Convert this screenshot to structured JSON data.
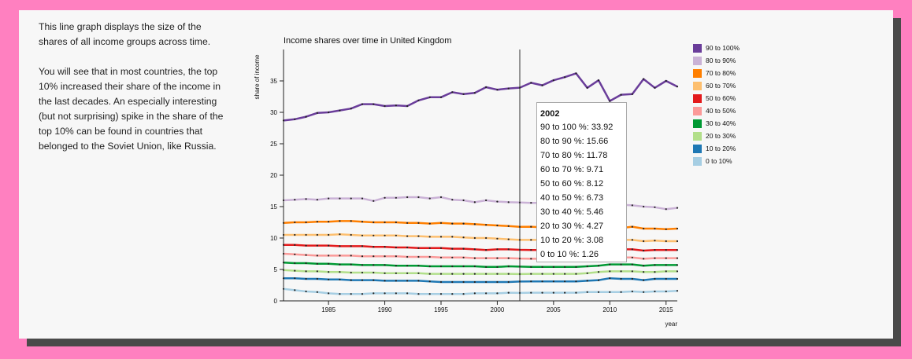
{
  "intro": {
    "paragraph1": "This line graph displays the size of the shares of all income groups across time.",
    "paragraph2": "You will see that in most countries, the top 10% increased their share of the income in the last decades. An especially interesting (but not surprising) spike in the share of the top 10% can be found in countries that belonged to the Soviet Union, like Russia."
  },
  "chart_data": {
    "type": "line",
    "title": "Income shares over time in United Kingdom",
    "xlabel": "year",
    "ylabel": "share of income",
    "xlim": [
      1981,
      2016
    ],
    "ylim": [
      0,
      40
    ],
    "x_ticks": [
      1985,
      1990,
      1995,
      2000,
      2005,
      2010,
      2015
    ],
    "y_ticks": [
      0,
      5,
      10,
      15,
      20,
      25,
      30,
      35
    ],
    "grid": false,
    "legend_position": "right",
    "x": [
      1981,
      1982,
      1983,
      1984,
      1985,
      1986,
      1987,
      1988,
      1989,
      1990,
      1991,
      1992,
      1993,
      1994,
      1995,
      1996,
      1997,
      1998,
      1999,
      2000,
      2001,
      2002,
      2003,
      2004,
      2005,
      2006,
      2007,
      2008,
      2009,
      2010,
      2011,
      2012,
      2013,
      2014,
      2015,
      2016
    ],
    "series": [
      {
        "name": "90 to 100%",
        "color": "#6a3d9a",
        "values": [
          28.7,
          28.9,
          29.3,
          29.9,
          30.0,
          30.3,
          30.6,
          31.3,
          31.3,
          31.0,
          31.1,
          31.0,
          31.9,
          32.4,
          32.4,
          33.2,
          32.9,
          33.1,
          34.0,
          33.6,
          33.8,
          33.92,
          34.7,
          34.3,
          35.1,
          35.6,
          36.2,
          33.9,
          35.1,
          31.8,
          32.8,
          32.9,
          35.3,
          33.9,
          35.0,
          34.1
        ]
      },
      {
        "name": "80 to 90%",
        "color": "#cab2d6",
        "values": [
          16.0,
          16.1,
          16.2,
          16.1,
          16.3,
          16.3,
          16.3,
          16.3,
          15.9,
          16.4,
          16.4,
          16.5,
          16.5,
          16.3,
          16.5,
          16.1,
          16.0,
          15.7,
          16.0,
          15.8,
          15.7,
          15.66,
          15.6,
          15.6,
          15.6,
          15.5,
          15.5,
          15.5,
          15.4,
          15.4,
          15.3,
          15.2,
          15.0,
          14.9,
          14.6,
          14.8
        ]
      },
      {
        "name": "70 to 80%",
        "color": "#ff7f00",
        "values": [
          12.4,
          12.5,
          12.5,
          12.6,
          12.6,
          12.7,
          12.7,
          12.6,
          12.5,
          12.5,
          12.5,
          12.4,
          12.4,
          12.3,
          12.4,
          12.3,
          12.3,
          12.2,
          12.1,
          12.0,
          11.9,
          11.78,
          11.8,
          11.7,
          11.7,
          11.7,
          11.6,
          11.7,
          11.6,
          11.7,
          11.6,
          11.8,
          11.5,
          11.5,
          11.4,
          11.5
        ]
      },
      {
        "name": "60 to 70%",
        "color": "#fdbf6f",
        "values": [
          10.5,
          10.5,
          10.5,
          10.5,
          10.5,
          10.6,
          10.5,
          10.4,
          10.4,
          10.4,
          10.4,
          10.3,
          10.3,
          10.2,
          10.2,
          10.2,
          10.1,
          10.0,
          10.0,
          9.9,
          9.8,
          9.71,
          9.7,
          9.7,
          9.7,
          9.6,
          9.6,
          9.6,
          9.6,
          9.7,
          9.7,
          9.7,
          9.5,
          9.6,
          9.5,
          9.5
        ]
      },
      {
        "name": "50 to 60%",
        "color": "#e31a1c",
        "values": [
          8.9,
          8.9,
          8.8,
          8.8,
          8.8,
          8.7,
          8.7,
          8.7,
          8.6,
          8.6,
          8.5,
          8.5,
          8.4,
          8.4,
          8.4,
          8.3,
          8.3,
          8.2,
          8.1,
          8.2,
          8.2,
          8.12,
          8.1,
          8.1,
          8.1,
          8.1,
          8.1,
          8.1,
          8.1,
          8.2,
          8.2,
          8.2,
          8.0,
          8.1,
          8.1,
          8.1
        ]
      },
      {
        "name": "40 to 50%",
        "color": "#fb9a99",
        "values": [
          7.5,
          7.4,
          7.3,
          7.2,
          7.2,
          7.2,
          7.2,
          7.1,
          7.1,
          7.1,
          7.1,
          7.0,
          7.0,
          7.0,
          6.9,
          6.9,
          6.9,
          6.8,
          6.8,
          6.8,
          6.8,
          6.73,
          6.7,
          6.7,
          6.7,
          6.7,
          6.7,
          6.7,
          6.8,
          6.8,
          6.9,
          6.9,
          6.7,
          6.8,
          6.8,
          6.8
        ]
      },
      {
        "name": "30 to 40%",
        "color": "#009933",
        "values": [
          6.1,
          6.0,
          6.0,
          5.9,
          5.9,
          5.8,
          5.8,
          5.7,
          5.7,
          5.7,
          5.6,
          5.6,
          5.6,
          5.5,
          5.5,
          5.5,
          5.5,
          5.5,
          5.4,
          5.4,
          5.5,
          5.46,
          5.4,
          5.4,
          5.4,
          5.4,
          5.4,
          5.5,
          5.6,
          5.8,
          5.8,
          5.8,
          5.6,
          5.7,
          5.7,
          5.7
        ]
      },
      {
        "name": "20 to 30%",
        "color": "#b2df8a",
        "values": [
          4.9,
          4.8,
          4.7,
          4.7,
          4.6,
          4.6,
          4.5,
          4.5,
          4.5,
          4.4,
          4.4,
          4.4,
          4.4,
          4.3,
          4.3,
          4.3,
          4.3,
          4.3,
          4.3,
          4.3,
          4.3,
          4.27,
          4.3,
          4.3,
          4.3,
          4.3,
          4.3,
          4.4,
          4.6,
          4.7,
          4.7,
          4.7,
          4.6,
          4.6,
          4.7,
          4.7
        ]
      },
      {
        "name": "10 to 20%",
        "color": "#1f78b4",
        "values": [
          3.6,
          3.6,
          3.5,
          3.5,
          3.4,
          3.4,
          3.3,
          3.3,
          3.3,
          3.2,
          3.2,
          3.2,
          3.2,
          3.1,
          3.0,
          3.0,
          3.0,
          3.0,
          3.0,
          3.0,
          3.0,
          3.08,
          3.1,
          3.1,
          3.1,
          3.1,
          3.1,
          3.2,
          3.3,
          3.6,
          3.5,
          3.5,
          3.3,
          3.5,
          3.5,
          3.5
        ]
      },
      {
        "name": "0 to 10%",
        "color": "#a6cee3",
        "values": [
          1.9,
          1.7,
          1.5,
          1.4,
          1.2,
          1.1,
          1.1,
          1.1,
          1.2,
          1.2,
          1.2,
          1.2,
          1.1,
          1.1,
          1.1,
          1.1,
          1.1,
          1.2,
          1.2,
          1.2,
          1.3,
          1.26,
          1.3,
          1.3,
          1.3,
          1.3,
          1.3,
          1.4,
          1.4,
          1.4,
          1.4,
          1.5,
          1.4,
          1.5,
          1.5,
          1.6
        ]
      }
    ]
  },
  "legend": [
    {
      "label": "90 to 100%",
      "color": "#6a3d9a"
    },
    {
      "label": "80 to 90%",
      "color": "#cab2d6"
    },
    {
      "label": "70 to 80%",
      "color": "#ff7f00"
    },
    {
      "label": "60 to 70%",
      "color": "#fdbf6f"
    },
    {
      "label": "50 to 60%",
      "color": "#e31a1c"
    },
    {
      "label": "40 to 50%",
      "color": "#fb9a99"
    },
    {
      "label": "30 to 40%",
      "color": "#009933"
    },
    {
      "label": "20 to 30%",
      "color": "#b2df8a"
    },
    {
      "label": "10 to 20%",
      "color": "#1f78b4"
    },
    {
      "label": "0 to 10%",
      "color": "#a6cee3"
    }
  ],
  "tooltip": {
    "year": "2002",
    "rows": [
      "90 to 100 %: 33.92",
      "80 to 90 %: 15.66",
      "70 to 80 %: 11.78",
      "60 to 70 %: 9.71",
      "50 to 60 %: 8.12",
      "40 to 50 %: 6.73",
      "30 to 40 %: 5.46",
      "20 to 30 %: 4.27",
      "10 to 20 %: 3.08",
      "0 to 10 %: 1.26"
    ],
    "hover_year": 2002
  }
}
